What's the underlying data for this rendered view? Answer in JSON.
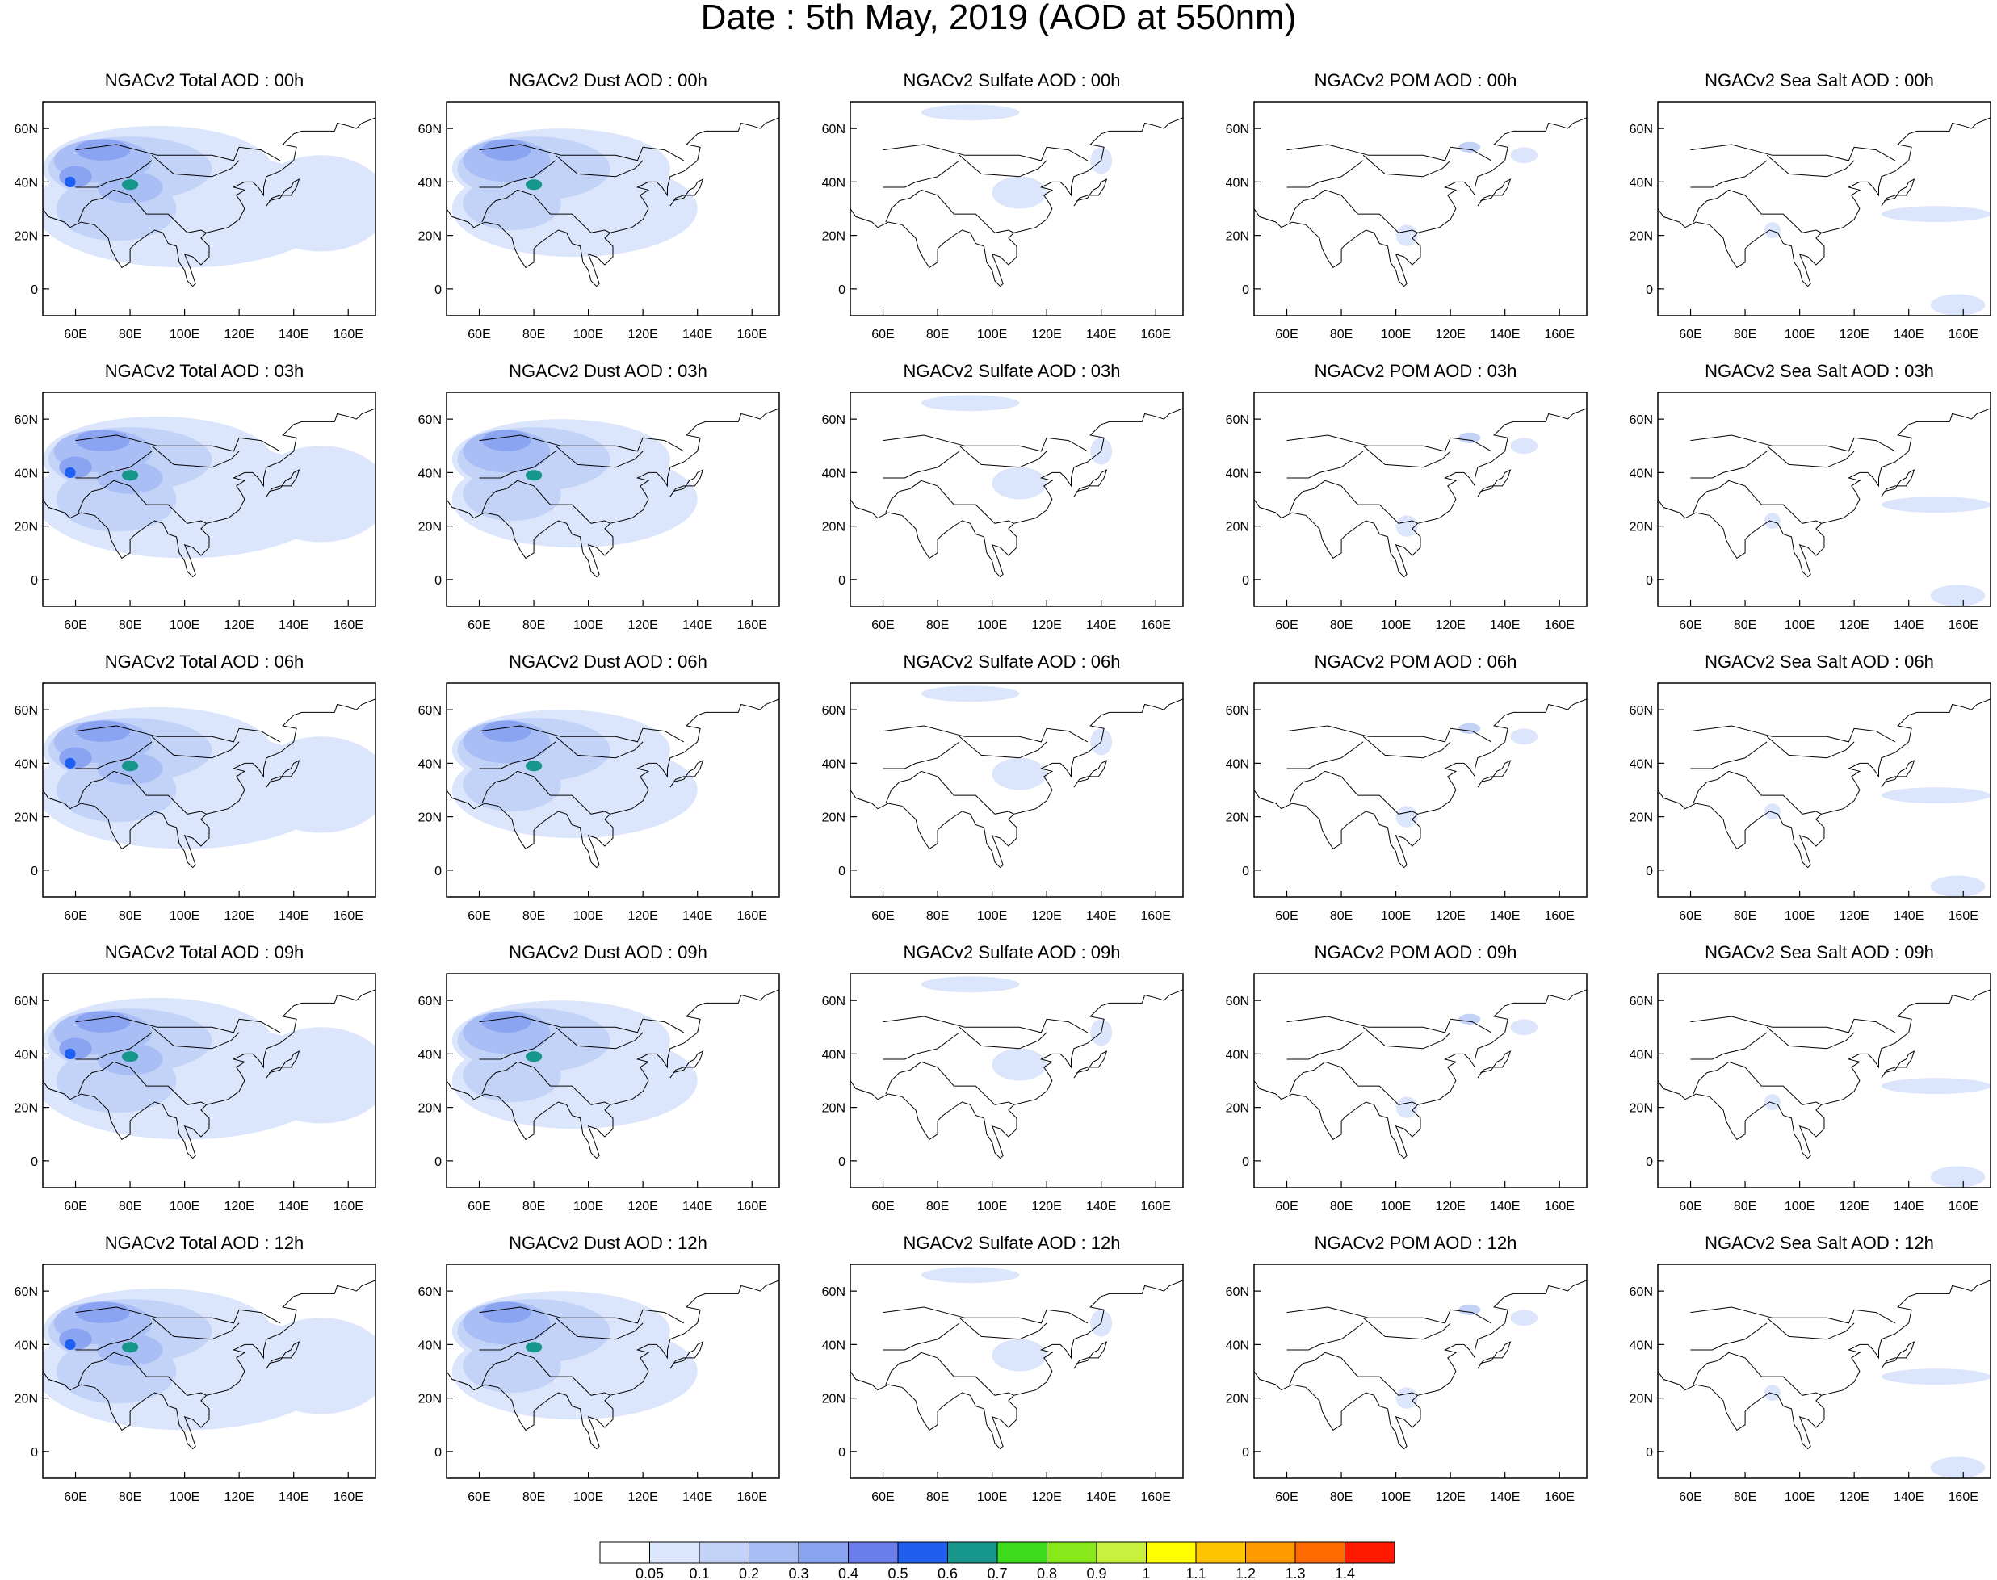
{
  "title": "Date : 5th May, 2019 (AOD at 550nm)",
  "lon_ticks": [
    "60E",
    "80E",
    "100E",
    "120E",
    "140E",
    "160E"
  ],
  "lat_ticks": [
    "60N",
    "40N",
    "20N",
    "0"
  ],
  "extent": {
    "lon": [
      48,
      170
    ],
    "lat": [
      -10,
      70
    ]
  },
  "species": [
    {
      "key": "total",
      "titles": [
        "NGACv2 Total AOD : 00h",
        "NGACv2 Total AOD : 03h",
        "NGACv2 Total AOD : 06h",
        "NGACv2 Total AOD : 09h",
        "NGACv2 Total AOD  : 12h"
      ]
    },
    {
      "key": "dust",
      "titles": [
        "NGACv2 Dust AOD : 00h",
        "NGACv2 Dust AOD : 03h",
        "NGACv2 Dust AOD : 06h",
        "NGACv2 Dust AOD : 09h",
        "NGACv2 Dust AOD : 12h"
      ]
    },
    {
      "key": "sulfate",
      "titles": [
        "NGACv2 Sulfate AOD : 00h",
        "NGACv2 Sulfate AOD : 03h",
        "NGACv2 Sulfate AOD : 06h",
        "NGACv2 Sulfate AOD : 09h",
        "NGACv2 Sulfate AOD : 12h"
      ]
    },
    {
      "key": "pom",
      "titles": [
        "NGACv2 POM AOD : 00h",
        "NGACv2 POM AOD : 03h",
        "NGACv2 POM AOD : 06h",
        "NGACv2 POM AOD : 09h",
        "NGACv2 POM  AOD : 12h"
      ]
    },
    {
      "key": "seasalt",
      "titles": [
        "NGACv2 Sea Salt AOD : 00h",
        "NGACv2 Sea Salt AOD : 03h",
        "NGACv2 Sea Salt AOD : 06h",
        "NGACv2 Sea Salt  AOD : 09h",
        "NGACv2 Sea Salt  AOD : 12h"
      ]
    }
  ],
  "colorbar": {
    "labels": [
      "0.05",
      "0.1",
      "0.2",
      "0.3",
      "0.4",
      "0.5",
      "0.6",
      "0.7",
      "0.8",
      "0.9",
      "1",
      "1.1",
      "1.2",
      "1.3",
      "1.4"
    ],
    "colors": [
      "#ffffff",
      "#dbe5fb",
      "#c3d3f8",
      "#a8bef5",
      "#8aa4f2",
      "#6b7ced",
      "#1f5ff0",
      "#17968c",
      "#3ddc1a",
      "#88e81a",
      "#c8f03c",
      "#ffff00",
      "#ffc400",
      "#ff9a00",
      "#ff6a00",
      "#ff1a00"
    ]
  },
  "fields": {
    "total": {
      "blobs": [
        {
          "lon": 90,
          "lat": 45,
          "rx": 42,
          "ry": 16,
          "level": 1
        },
        {
          "lon": 100,
          "lat": 30,
          "rx": 55,
          "ry": 22,
          "level": 1
        },
        {
          "lon": 150,
          "lat": 32,
          "rx": 25,
          "ry": 18,
          "level": 1
        },
        {
          "lon": 80,
          "lat": 45,
          "rx": 30,
          "ry": 12,
          "level": 2
        },
        {
          "lon": 75,
          "lat": 30,
          "rx": 22,
          "ry": 12,
          "level": 2
        },
        {
          "lon": 70,
          "lat": 48,
          "rx": 18,
          "ry": 8,
          "level": 3
        },
        {
          "lon": 80,
          "lat": 38,
          "rx": 12,
          "ry": 6,
          "level": 3
        },
        {
          "lon": 70,
          "lat": 52,
          "rx": 10,
          "ry": 4,
          "level": 4
        },
        {
          "lon": 60,
          "lat": 42,
          "rx": 6,
          "ry": 4,
          "level": 4
        },
        {
          "lon": 80,
          "lat": 39,
          "rx": 3,
          "ry": 2,
          "level": 7
        },
        {
          "lon": 58,
          "lat": 40,
          "rx": 2,
          "ry": 2,
          "level": 6
        }
      ]
    },
    "dust": {
      "blobs": [
        {
          "lon": 90,
          "lat": 45,
          "rx": 40,
          "ry": 15,
          "level": 1
        },
        {
          "lon": 95,
          "lat": 30,
          "rx": 45,
          "ry": 18,
          "level": 1
        },
        {
          "lon": 80,
          "lat": 45,
          "rx": 28,
          "ry": 12,
          "level": 2
        },
        {
          "lon": 72,
          "lat": 32,
          "rx": 18,
          "ry": 10,
          "level": 2
        },
        {
          "lon": 70,
          "lat": 48,
          "rx": 16,
          "ry": 8,
          "level": 3
        },
        {
          "lon": 70,
          "lat": 52,
          "rx": 9,
          "ry": 4,
          "level": 4
        },
        {
          "lon": 80,
          "lat": 39,
          "rx": 3,
          "ry": 2,
          "level": 7
        }
      ]
    },
    "sulfate": {
      "blobs": [
        {
          "lon": 110,
          "lat": 36,
          "rx": 10,
          "ry": 6,
          "level": 1
        },
        {
          "lon": 92,
          "lat": 66,
          "rx": 18,
          "ry": 3,
          "level": 1
        },
        {
          "lon": 140,
          "lat": 48,
          "rx": 4,
          "ry": 5,
          "level": 1
        }
      ]
    },
    "pom": {
      "blobs": [
        {
          "lon": 127,
          "lat": 53,
          "rx": 4,
          "ry": 2,
          "level": 2
        },
        {
          "lon": 104,
          "lat": 20,
          "rx": 4,
          "ry": 4,
          "level": 1
        },
        {
          "lon": 147,
          "lat": 50,
          "rx": 5,
          "ry": 3,
          "level": 1
        }
      ]
    },
    "seasalt": {
      "blobs": [
        {
          "lon": 150,
          "lat": 28,
          "rx": 20,
          "ry": 3,
          "level": 1
        },
        {
          "lon": 158,
          "lat": -6,
          "rx": 10,
          "ry": 4,
          "level": 1
        },
        {
          "lon": 90,
          "lat": 22,
          "rx": 3,
          "ry": 3,
          "level": 1
        }
      ]
    }
  }
}
